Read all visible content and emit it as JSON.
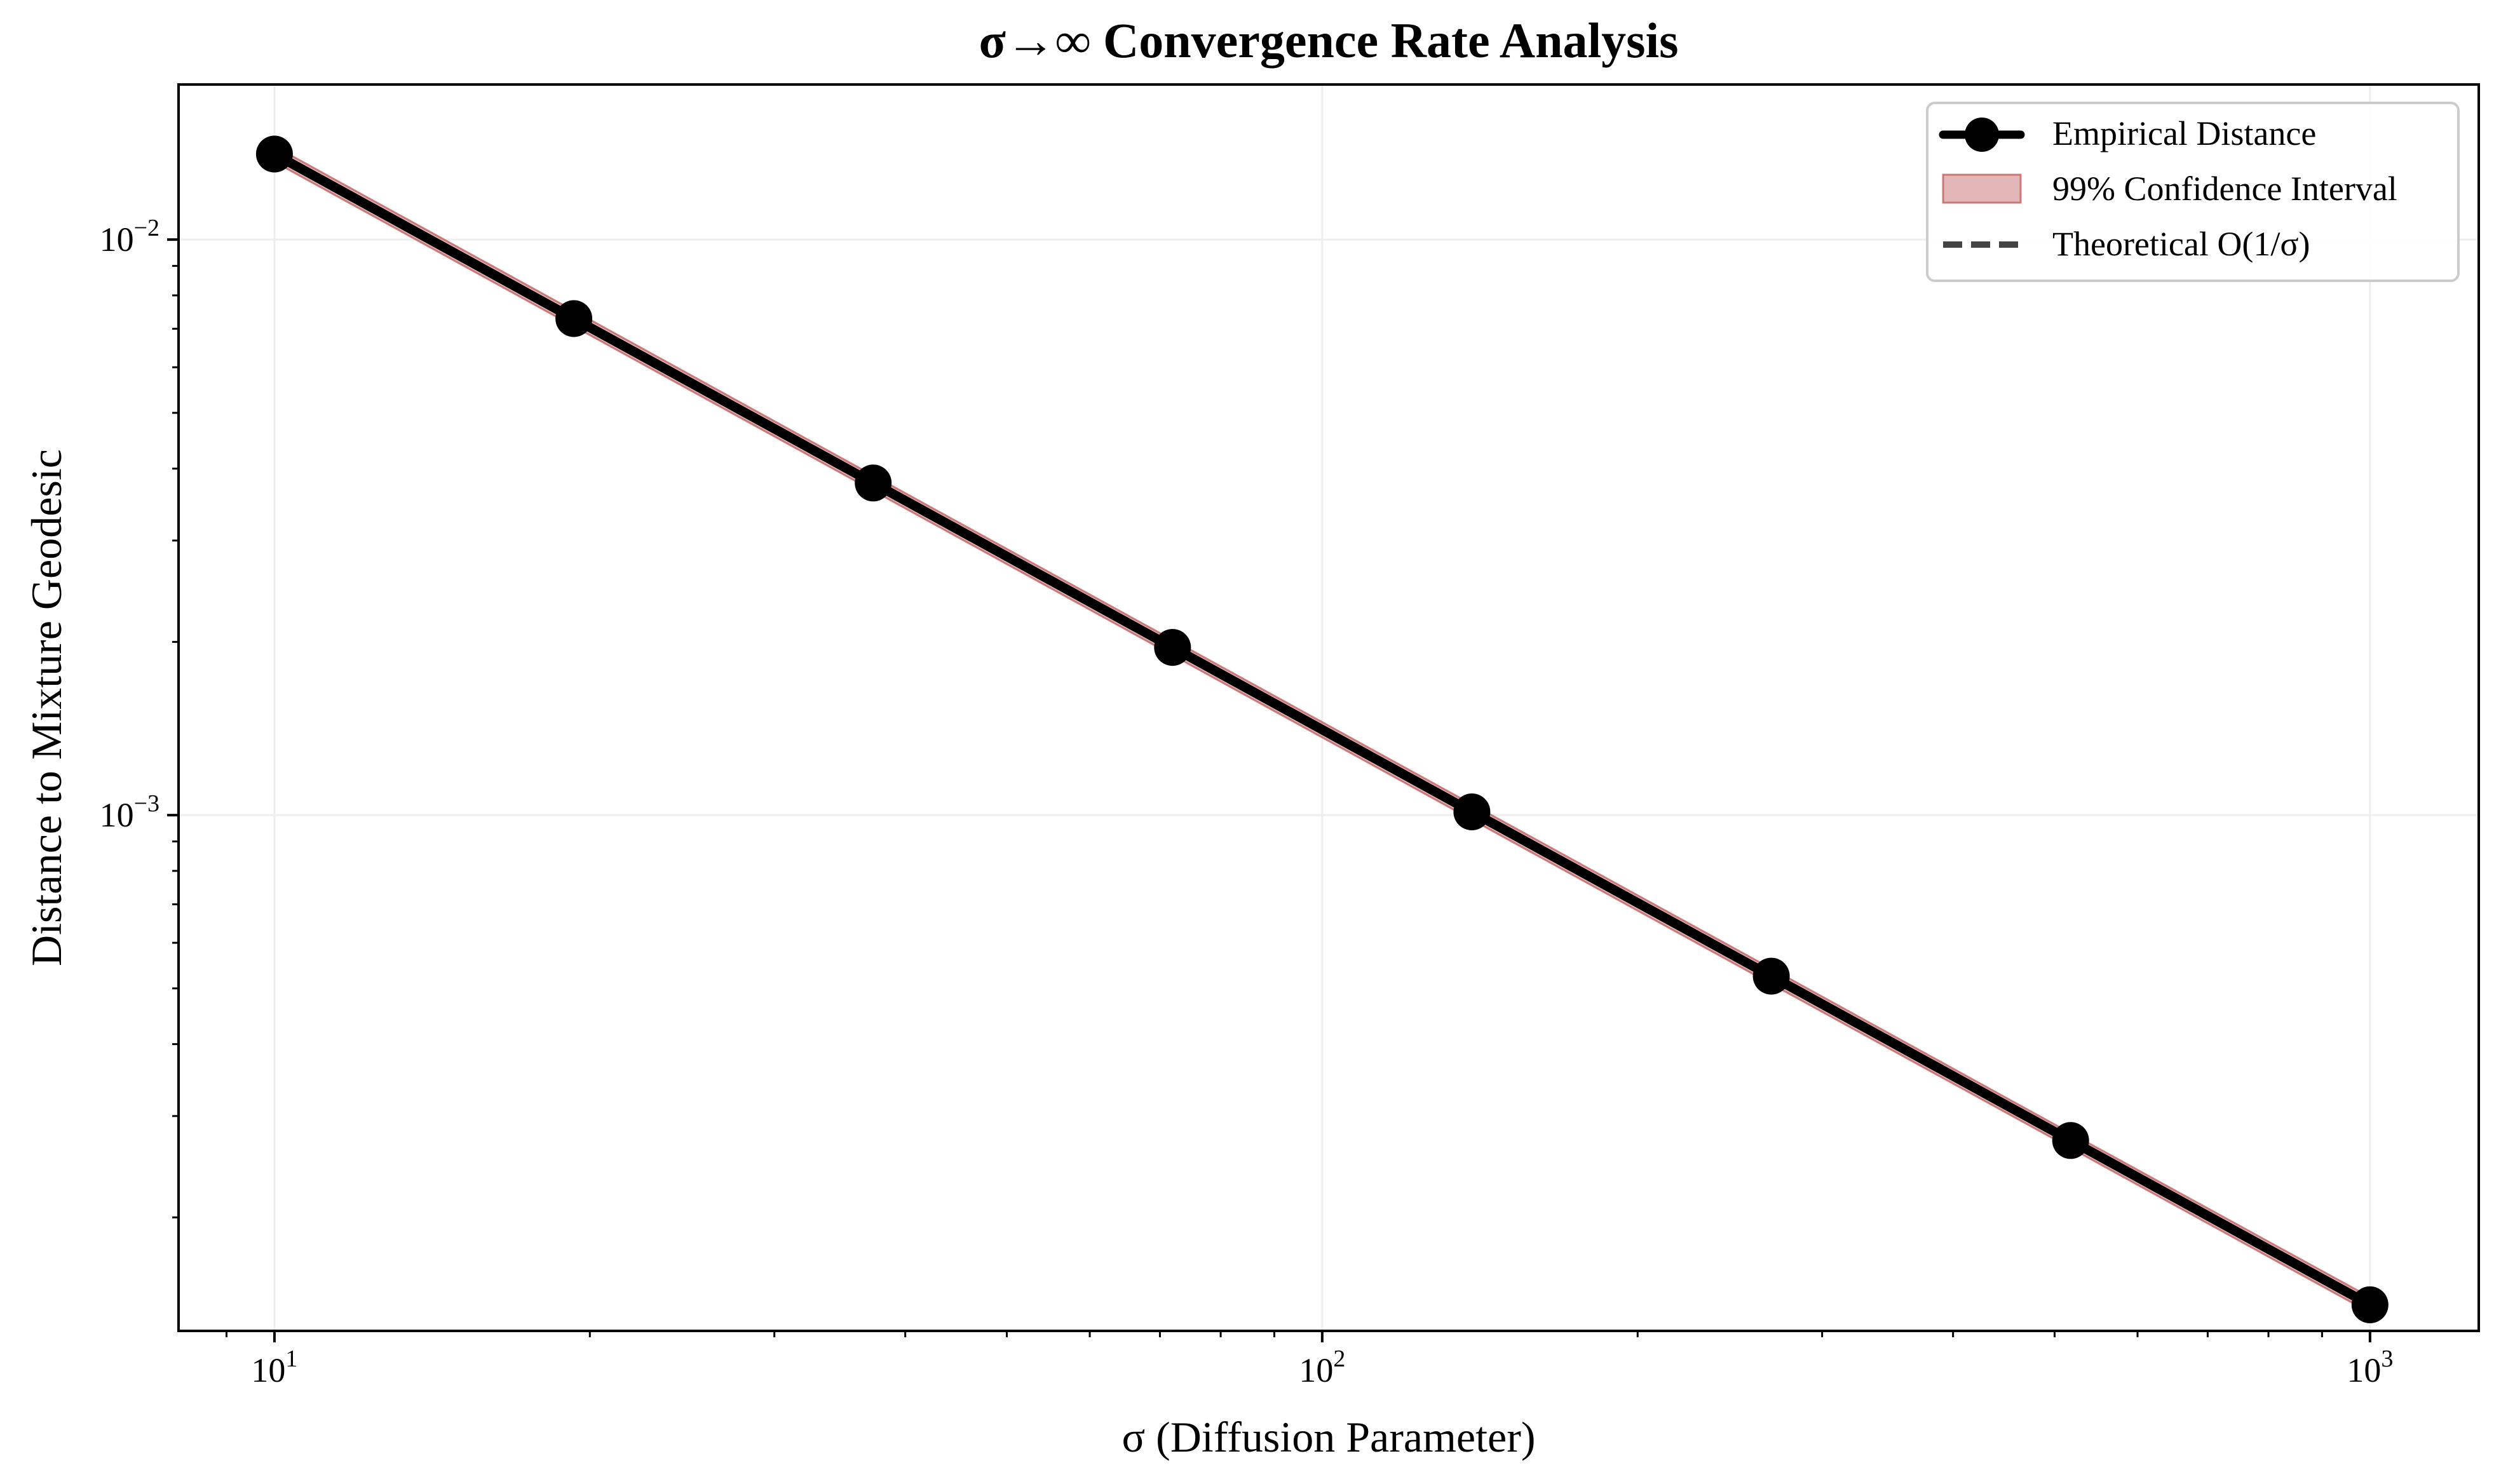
{
  "chart_data": {
    "type": "line",
    "title": "σ→∞ Convergence Rate Analysis",
    "xlabel": "σ (Diffusion Parameter)",
    "ylabel": "Distance to Mixture Geodesic",
    "x_scale": "log",
    "y_scale": "log",
    "xlim": [
      8.1,
      1270
    ],
    "ylim": [
      0.000127,
      0.0186
    ],
    "x_major_ticks": [
      {
        "value": 10,
        "base": "10",
        "exp": "1"
      },
      {
        "value": 100,
        "base": "10",
        "exp": "2"
      },
      {
        "value": 1000,
        "base": "10",
        "exp": "3"
      }
    ],
    "y_major_ticks": [
      {
        "value": 0.001,
        "base": "10",
        "exp": "−3"
      },
      {
        "value": 0.01,
        "base": "10",
        "exp": "−2"
      }
    ],
    "grid": true,
    "legend_position": "top-right",
    "series": [
      {
        "name": "Empirical Distance",
        "kind": "line-markers",
        "color": "#000000",
        "x": [
          10,
          19.31,
          37.28,
          71.97,
          138.95,
          268.27,
          517.95,
          1000
        ],
        "y": [
          0.01408,
          0.00729,
          0.003776,
          0.001956,
          0.001013,
          0.000525,
          0.000272,
          0.000141
        ]
      },
      {
        "name": "99% Confidence Interval",
        "kind": "band",
        "color": "#c0605f",
        "x": [
          10,
          19.31,
          37.28,
          71.97,
          138.95,
          268.27,
          517.95,
          1000
        ],
        "lower": [
          0.01365,
          0.00707,
          0.003662,
          0.001897,
          0.000982,
          0.000509,
          0.000264,
          0.0001367
        ],
        "upper": [
          0.01452,
          0.00752,
          0.00389,
          0.002015,
          0.001044,
          0.000541,
          0.00028,
          0.0001453
        ]
      },
      {
        "name": "Theoretical O(1/σ)",
        "kind": "dashed-line",
        "color": "#444444",
        "x": [
          10,
          1000
        ],
        "y": [
          0.01408,
          0.000141
        ]
      }
    ]
  }
}
